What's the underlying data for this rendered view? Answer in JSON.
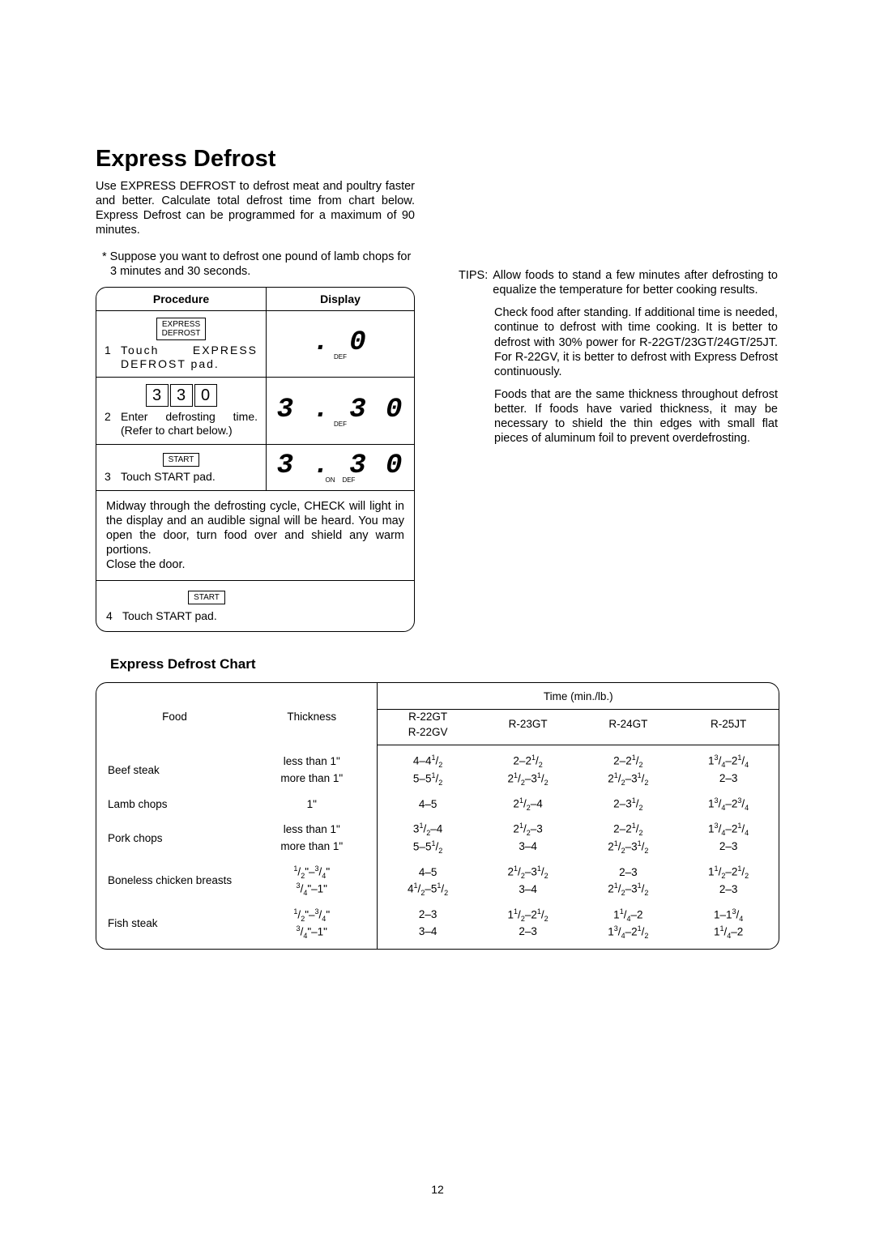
{
  "title": "Express Defrost",
  "intro": "Use EXPRESS DEFROST to defrost meat and poultry faster and better. Calculate total defrost time from chart below. Express Defrost can be programmed for a maximum of 90 minutes.",
  "example": "Suppose you want to defrost one pound of lamb chops for 3 minutes and 30 seconds.",
  "procedure": {
    "header_left": "Procedure",
    "header_right": "Display",
    "step1": {
      "key_label": "EXPRESS\nDEFROST",
      "num": "1",
      "text": "Touch EXPRESS DEFROST pad.",
      "display_main": ".   0",
      "display_sub": "DEF"
    },
    "step2": {
      "keys": [
        "3",
        "3",
        "0"
      ],
      "num": "2",
      "text": "Enter defrosting time. (Refer to chart below.)",
      "display_main": "3 . 3 0",
      "display_sub": "DEF"
    },
    "step3": {
      "key_label": "START",
      "num": "3",
      "text": "Touch START pad.",
      "display_main": "3 . 3 0",
      "display_sub": "ON    DEF"
    },
    "midway_note": "Midway through the defrosting cycle, CHECK will light in the display and an audible signal will be heard. You may open the door, turn food over and shield any warm portions.\nClose the door.",
    "step4": {
      "key_label": "START",
      "num": "4",
      "text": "Touch START pad."
    }
  },
  "tips": {
    "label": "TIPS:",
    "p1": "Allow foods to stand a few minutes after defrosting to equalize the temperature for better cooking results.",
    "p2": "Check food after standing. If additional time is needed, continue to defrost with time cooking. It is better to defrost with 30% power for R-22GT/23GT/24GT/25JT. For R-22GV, it is better to defrost with Express Defrost continuously.",
    "p3": "Foods that are the same thickness throughout defrost better. If foods have varied thickness, it may be necessary to shield the thin edges with small flat pieces of aluminum foil to prevent overdefrosting."
  },
  "chart": {
    "title": "Express Defrost Chart",
    "time_header": "Time (min./lb.)",
    "col_food": "Food",
    "col_thickness": "Thickness",
    "models": [
      "R-22GT",
      "R-23GT",
      "R-24GT",
      "R-25JT"
    ],
    "model1_sub": "R-22GV",
    "rows": [
      {
        "food": "Beef steak",
        "thickness": [
          "less than 1\"",
          "more than 1\""
        ],
        "times": [
          [
            "4–4¹/₂",
            "2–2¹/₂",
            "2–2¹/₂",
            "1³/₄–2¹/₄"
          ],
          [
            "5–5¹/₂",
            "2¹/₂–3¹/₂",
            "2¹/₂–3¹/₂",
            "2–3"
          ]
        ]
      },
      {
        "food": "Lamb chops",
        "thickness": [
          "1\""
        ],
        "times": [
          [
            "4–5",
            "2¹/₂–4",
            "2–3¹/₂",
            "1³/₄–2³/₄"
          ]
        ]
      },
      {
        "food": "Pork chops",
        "thickness": [
          "less than 1\"",
          "more than 1\""
        ],
        "times": [
          [
            "3¹/₂–4",
            "2¹/₂–3",
            "2–2¹/₂",
            "1³/₄–2¹/₄"
          ],
          [
            "5–5¹/₂",
            "3–4",
            "2¹/₂–3¹/₂",
            "2–3"
          ]
        ]
      },
      {
        "food": "Boneless chicken breasts",
        "thickness": [
          "¹/₂\"–³/₄\"",
          "³/₄\"–1\""
        ],
        "times": [
          [
            "4–5",
            "2¹/₂–3¹/₂",
            "2–3",
            "1¹/₂–2¹/₂"
          ],
          [
            "4¹/₂–5¹/₂",
            "3–4",
            "2¹/₂–3¹/₂",
            "2–3"
          ]
        ]
      },
      {
        "food": "Fish steak",
        "thickness": [
          "¹/₂\"–³/₄\"",
          "³/₄\"–1\""
        ],
        "times": [
          [
            "2–3",
            "1¹/₂–2¹/₂",
            "1¹/₄–2",
            "1–1³/₄"
          ],
          [
            "3–4",
            "2–3",
            "1³/₄–2¹/₂",
            "1¹/₄–2"
          ]
        ]
      }
    ]
  },
  "page_number": "12"
}
